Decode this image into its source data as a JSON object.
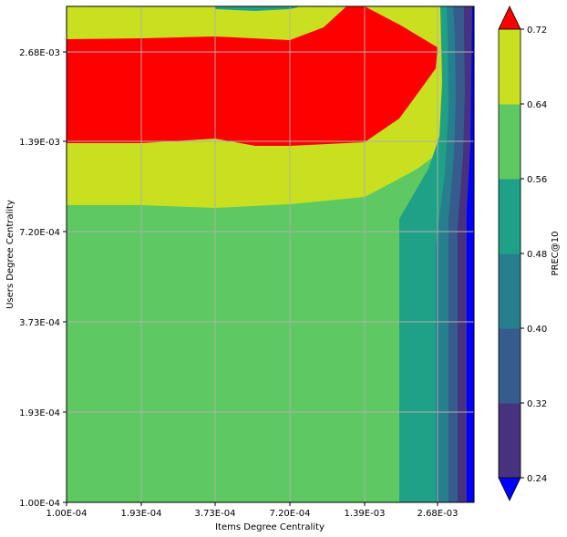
{
  "chart_data": {
    "type": "heatmap",
    "subtype": "filled-contour",
    "title": "",
    "xlabel": "Items Degree Centrality",
    "ylabel": "Users Degree Centrality",
    "x_ticks": [
      "1.00E-04",
      "1.93E-04",
      "3.73E-04",
      "7.20E-04",
      "1.39E-03",
      "2.68E-03"
    ],
    "y_ticks": [
      "1.00E-04",
      "1.93E-04",
      "3.73E-04",
      "7.20E-04",
      "1.39E-03",
      "2.68E-03"
    ],
    "x_scale": "log",
    "y_scale": "log",
    "grid": true,
    "colorbar": {
      "label": "PREC@10",
      "ticks": [
        "0.24",
        "0.32",
        "0.40",
        "0.48",
        "0.56",
        "0.64",
        "0.72"
      ],
      "levels": [
        0.24,
        0.32,
        0.4,
        0.48,
        0.56,
        0.64,
        0.72
      ],
      "colors": [
        "#46327e",
        "#365c8d",
        "#277f8e",
        "#1fa187",
        "#5ec962",
        "#c8e020"
      ],
      "under_color": "#0000ff",
      "over_color": "#ff0000",
      "extend": "both"
    },
    "regions_description_levels": {
      "lower_region_value_range": [
        0.56,
        0.64
      ],
      "middle_band_value_range": [
        0.64,
        0.72
      ],
      "upper_band_value_range": [
        0.72,
        null
      ],
      "right_edge_min_range": [
        null,
        0.24
      ]
    }
  }
}
